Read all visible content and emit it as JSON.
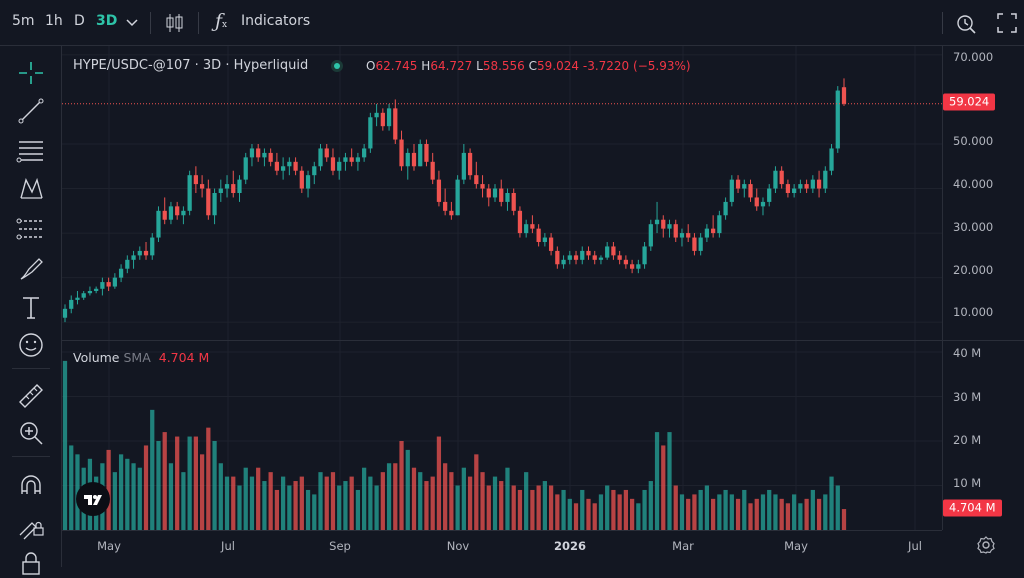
{
  "toolbar": {
    "intervals": [
      "5m",
      "1h",
      "D",
      "3D"
    ],
    "active_interval": "3D",
    "indicators_label": "Indicators"
  },
  "legend": {
    "symbol": "HYPE/USDC-@107 · 3D · Hyperliquid",
    "open_key": "O",
    "open": "62.745",
    "high_key": "H",
    "high": "64.727",
    "low_key": "L",
    "low": "58.556",
    "close_key": "C",
    "close": "59.024",
    "change": "-3.7220",
    "change_pct": "(−5.93%)"
  },
  "volume_legend": {
    "name": "Volume",
    "ma": "SMA",
    "value": "4.704 M"
  },
  "price_axis": {
    "labels": [
      "70.000",
      "50.000",
      "40.000",
      "30.000",
      "20.000",
      "10.000"
    ],
    "current_tag": "59.024"
  },
  "volume_axis": {
    "labels": [
      "40 M",
      "30 M",
      "20 M",
      "10 M"
    ],
    "current_tag": "4.704 M"
  },
  "time_axis": {
    "labels": [
      "May",
      "Jul",
      "Sep",
      "Nov",
      "2026",
      "Mar",
      "May",
      "Jul"
    ],
    "bold": "2026"
  },
  "colors": {
    "up": "#26a69a",
    "down": "#ef5350",
    "bg": "#131722",
    "grid": "#1e222d",
    "accent": "#2ec4a9"
  },
  "icons": [
    "crosshair-icon",
    "trendline-icon",
    "fib-icon",
    "pattern-icon",
    "projection-icon",
    "brush-icon",
    "text-icon",
    "emoji-icon",
    "ruler-icon",
    "zoom-in-icon",
    "magnet-icon",
    "lock-drawing-icon",
    "lock-icon"
  ],
  "chart_data": {
    "type": "candlestick",
    "price_range": [
      6,
      72
    ],
    "volume_range_M": [
      0,
      40
    ],
    "candles": [
      [
        11,
        14,
        10,
        13,
        38
      ],
      [
        13,
        16,
        12,
        15,
        19
      ],
      [
        15,
        17,
        14,
        15.5,
        17
      ],
      [
        15.5,
        17,
        15,
        16.5,
        14
      ],
      [
        16.5,
        18,
        16,
        17,
        16
      ],
      [
        17,
        18,
        16.5,
        17.5,
        12
      ],
      [
        17.5,
        20,
        16,
        19,
        15
      ],
      [
        19,
        20,
        17,
        18,
        18
      ],
      [
        18,
        21,
        17.5,
        20,
        13
      ],
      [
        20,
        23,
        19,
        22,
        17
      ],
      [
        22,
        25,
        21,
        24,
        16
      ],
      [
        24,
        26,
        22,
        25,
        15
      ],
      [
        25,
        27,
        24,
        26,
        14
      ],
      [
        26,
        28,
        24,
        25,
        19
      ],
      [
        25,
        30,
        24,
        29,
        27
      ],
      [
        29,
        36,
        28,
        35,
        20
      ],
      [
        35,
        38,
        32,
        33,
        22
      ],
      [
        33,
        37,
        32,
        36,
        15
      ],
      [
        36,
        37,
        33,
        34,
        21
      ],
      [
        34,
        36,
        32,
        35,
        13
      ],
      [
        35,
        44,
        34,
        43,
        21
      ],
      [
        43,
        45,
        39,
        41,
        21
      ],
      [
        41,
        43,
        38,
        40,
        17
      ],
      [
        40,
        42,
        33,
        34,
        23
      ],
      [
        34,
        40,
        32,
        39,
        20
      ],
      [
        39,
        42,
        37,
        40,
        15
      ],
      [
        40,
        43,
        38,
        41,
        12
      ],
      [
        41,
        44,
        38,
        39,
        12
      ],
      [
        39,
        43,
        37,
        42,
        10
      ],
      [
        42,
        48,
        41,
        47,
        14
      ],
      [
        47,
        50,
        45,
        49,
        12
      ],
      [
        49,
        50,
        46,
        47,
        14
      ],
      [
        47,
        49,
        45,
        48,
        11
      ],
      [
        48,
        49,
        45,
        46,
        13
      ],
      [
        46,
        48,
        43,
        44,
        9
      ],
      [
        44,
        47,
        42,
        45,
        12
      ],
      [
        45,
        47,
        43,
        46,
        10
      ],
      [
        46,
        47,
        43,
        44,
        11
      ],
      [
        44,
        45,
        39,
        40,
        12
      ],
      [
        40,
        44,
        38,
        43,
        9
      ],
      [
        43,
        46,
        41,
        45,
        8
      ],
      [
        45,
        50,
        44,
        49,
        13
      ],
      [
        49,
        50,
        46,
        47,
        12
      ],
      [
        47,
        49,
        43,
        44,
        13
      ],
      [
        44,
        47,
        42,
        46,
        10
      ],
      [
        46,
        48,
        44,
        47,
        11
      ],
      [
        47,
        49,
        45,
        46,
        12
      ],
      [
        46,
        48,
        44,
        47,
        9
      ],
      [
        47,
        50,
        46,
        49,
        14
      ],
      [
        49,
        57,
        48,
        56,
        12
      ],
      [
        56,
        59,
        54,
        57,
        10
      ],
      [
        57,
        58,
        53,
        54,
        13
      ],
      [
        54,
        59,
        53,
        58,
        15
      ],
      [
        58,
        60,
        50,
        51,
        15
      ],
      [
        51,
        53,
        44,
        45,
        20
      ],
      [
        45,
        49,
        42,
        48,
        18
      ],
      [
        48,
        50,
        44,
        45,
        14
      ],
      [
        45,
        51,
        45,
        50,
        13
      ],
      [
        50,
        51,
        45,
        46,
        11
      ],
      [
        46,
        48,
        41,
        42,
        12
      ],
      [
        42,
        44,
        36,
        37,
        21
      ],
      [
        37,
        40,
        34,
        35,
        15
      ],
      [
        35,
        37,
        33,
        34,
        13
      ],
      [
        34,
        43,
        34,
        42,
        10
      ],
      [
        42,
        50,
        41,
        48,
        14
      ],
      [
        48,
        49,
        42,
        43,
        12
      ],
      [
        43,
        46,
        40,
        41,
        17
      ],
      [
        41,
        43,
        38,
        40,
        13
      ],
      [
        40,
        41,
        36,
        38,
        10
      ],
      [
        38,
        41,
        37,
        40,
        12
      ],
      [
        40,
        42,
        36,
        37,
        11
      ],
      [
        37,
        40,
        35,
        39,
        14
      ],
      [
        39,
        40,
        34,
        35,
        10
      ],
      [
        35,
        36,
        29,
        30,
        9
      ],
      [
        30,
        33,
        29,
        32,
        13
      ],
      [
        32,
        34,
        30,
        31,
        9
      ],
      [
        31,
        32,
        27,
        28,
        10
      ],
      [
        28,
        30,
        27,
        29,
        11
      ],
      [
        29,
        30,
        25,
        26,
        10
      ],
      [
        26,
        27,
        22,
        23,
        8
      ],
      [
        23,
        25,
        22,
        24,
        9
      ],
      [
        24,
        26,
        23,
        25,
        7
      ],
      [
        25,
        26,
        23,
        24,
        6
      ],
      [
        24,
        27,
        23,
        26,
        9
      ],
      [
        26,
        27,
        24,
        25,
        7
      ],
      [
        25,
        26,
        23,
        24,
        6
      ],
      [
        24,
        25,
        23,
        24.5,
        8
      ],
      [
        24.5,
        28,
        24,
        27,
        10
      ],
      [
        27,
        28,
        24,
        25,
        9
      ],
      [
        25,
        26,
        23,
        24,
        8
      ],
      [
        24,
        25,
        22,
        23,
        9
      ],
      [
        23,
        24,
        21,
        22,
        7
      ],
      [
        22,
        24,
        21,
        23,
        6
      ],
      [
        23,
        28,
        22,
        27,
        9
      ],
      [
        27,
        33,
        26,
        32,
        11
      ],
      [
        32,
        37,
        30,
        33,
        22
      ],
      [
        33,
        34,
        29,
        31,
        19
      ],
      [
        31,
        33,
        29,
        32,
        22
      ],
      [
        32,
        33,
        28,
        29,
        10
      ],
      [
        29,
        31,
        27,
        30,
        8
      ],
      [
        30,
        32,
        28,
        29,
        7
      ],
      [
        29,
        30,
        25,
        26,
        8
      ],
      [
        26,
        30,
        25,
        29,
        9
      ],
      [
        29,
        32,
        28,
        31,
        10
      ],
      [
        31,
        34,
        29,
        30,
        7
      ],
      [
        30,
        35,
        29,
        34,
        8
      ],
      [
        34,
        38,
        33,
        37,
        9
      ],
      [
        37,
        43,
        36,
        42,
        8
      ],
      [
        42,
        43,
        39,
        40,
        7
      ],
      [
        40,
        42,
        38,
        41,
        9
      ],
      [
        41,
        42,
        37,
        38,
        6
      ],
      [
        38,
        40,
        35,
        36,
        7
      ],
      [
        36,
        38,
        34,
        37,
        8
      ],
      [
        37,
        41,
        36,
        40,
        9
      ],
      [
        40,
        45,
        39,
        44,
        8
      ],
      [
        44,
        45,
        40,
        41,
        7
      ],
      [
        41,
        42,
        38,
        39,
        6
      ],
      [
        39,
        41,
        38,
        40,
        8
      ],
      [
        40,
        42,
        39,
        41,
        6
      ],
      [
        41,
        42,
        39,
        40,
        7
      ],
      [
        40,
        43,
        39,
        42,
        9
      ],
      [
        42,
        44,
        38,
        40,
        7
      ],
      [
        40,
        45,
        39,
        44,
        8
      ],
      [
        44,
        50,
        43,
        49,
        12
      ],
      [
        49,
        63,
        48,
        62,
        10
      ],
      [
        62.745,
        64.727,
        58.556,
        59.024,
        4.704
      ]
    ]
  }
}
